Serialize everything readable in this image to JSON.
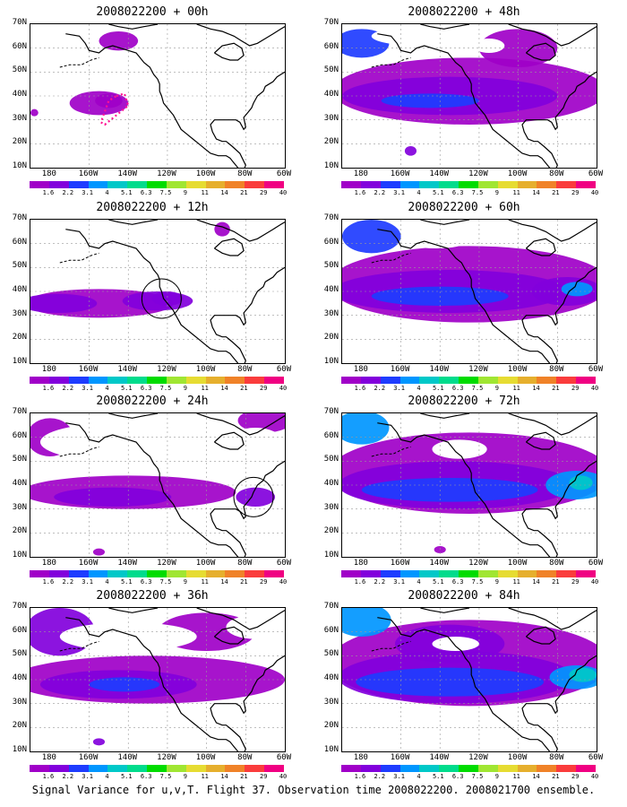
{
  "figure": {
    "caption": "Signal Variance for u,v,T. Flight 37. Observation time 2008022200. 2008021700 ensemble."
  },
  "axes": {
    "lat_labels": [
      "70N",
      "60N",
      "50N",
      "40N",
      "30N",
      "20N",
      "10N"
    ],
    "lon_labels": [
      "180",
      "160W",
      "140W",
      "120W",
      "100W",
      "80W",
      "60W"
    ]
  },
  "colorbar": {
    "labels": [
      "1.6",
      "2.2",
      "3.1",
      "4",
      "5.1",
      "6.3",
      "7.5",
      "9",
      "11",
      "14",
      "21",
      "29",
      "40"
    ],
    "colors": [
      "#a000c8",
      "#8200dc",
      "#1e3cff",
      "#0096ff",
      "#00c8c8",
      "#00dc8c",
      "#00dc00",
      "#a0e632",
      "#e6dc32",
      "#e6af2d",
      "#f08228",
      "#fa3c3c",
      "#f00082"
    ]
  },
  "panels": [
    {
      "title": "2008022200 + 00h",
      "lead_h": 0
    },
    {
      "title": "2008022200 + 12h",
      "lead_h": 12
    },
    {
      "title": "2008022200 + 24h",
      "lead_h": 24
    },
    {
      "title": "2008022200 + 36h",
      "lead_h": 36
    },
    {
      "title": "2008022200 + 48h",
      "lead_h": 48
    },
    {
      "title": "2008022200 + 60h",
      "lead_h": 60
    },
    {
      "title": "2008022200 + 72h",
      "lead_h": 72
    },
    {
      "title": "2008022200 + 84h",
      "lead_h": 84
    }
  ]
}
